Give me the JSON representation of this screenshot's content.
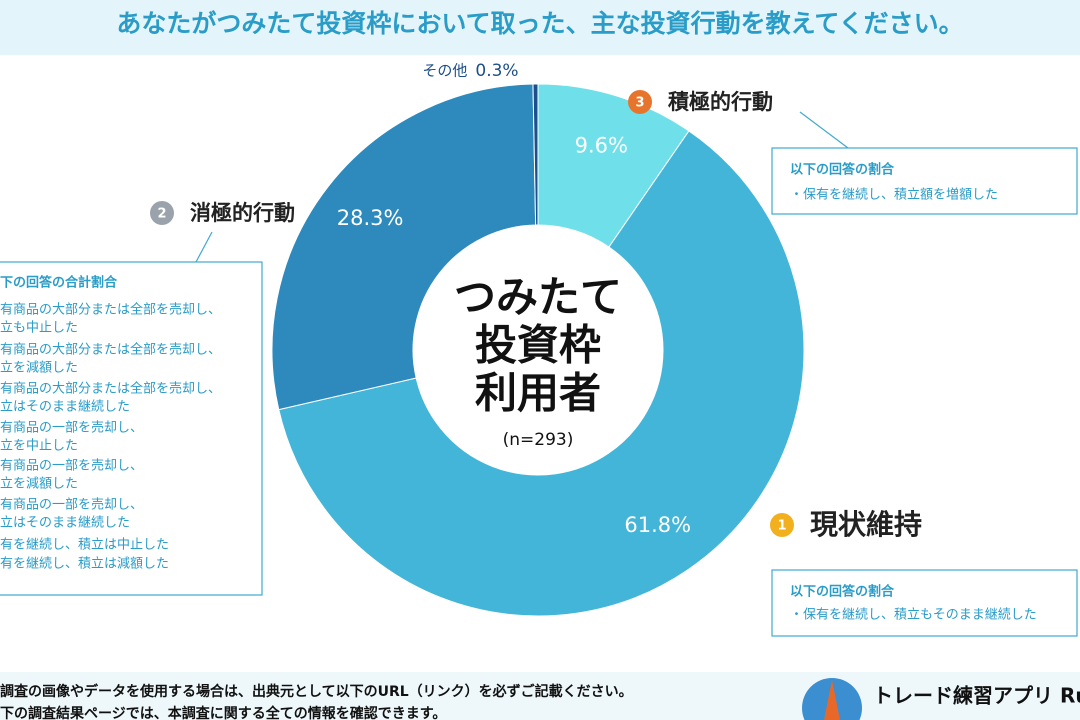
{
  "header": {
    "title": "あなたがつみたて投資枠において取った、主な投資行動を教えてください。"
  },
  "chart_data": {
    "type": "donut",
    "center_label": [
      "つみたて",
      "投資枠",
      "利用者"
    ],
    "sample": "(n=293)",
    "categories": [
      "積極的行動",
      "現状維持",
      "消極的行動",
      "その他"
    ],
    "values": [
      9.6,
      61.8,
      28.3,
      0.3
    ],
    "value_labels": [
      "9.6%",
      "61.8%",
      "28.3%",
      "0.3%"
    ],
    "colors": [
      "#6fe0e9",
      "#43b5d8",
      "#2e8abd",
      "#1d4f8a"
    ],
    "ranks": [
      "3",
      "1",
      "2",
      null
    ],
    "notes": [
      {
        "heading": "以下の回答の割合",
        "items": [
          "・保有を継続し、積立額を増額した"
        ]
      },
      {
        "heading": "以下の回答の割合",
        "items": [
          "・保有を継続し、積立もそのまま継続した"
        ]
      },
      {
        "heading": "下の回答の合計割合",
        "items": [
          "有商品の大部分または全部を売却し、",
          "立も中止した",
          "有商品の大部分または全部を売却し、",
          "立を減額した",
          "有商品の大部分または全部を売却し、",
          "立はそのまま継続した",
          "有商品の一部を売却し、",
          "立を中止した",
          "有商品の一部を売却し、",
          "立を減額した",
          "有商品の一部を売却し、",
          "立はそのまま継続した",
          "有を継続し、積立は中止した",
          "有を継続し、積立は減額した"
        ]
      },
      null
    ]
  },
  "footer": {
    "lines": [
      "調査の画像やデータを使用する場合は、出典元として以下のURL（リンク）を必ずご記載ください。",
      "下の調査結果ページでは、本調査に関する全ての情報を確認できます。"
    ],
    "brand": "トレード練習アプリ Runc"
  }
}
